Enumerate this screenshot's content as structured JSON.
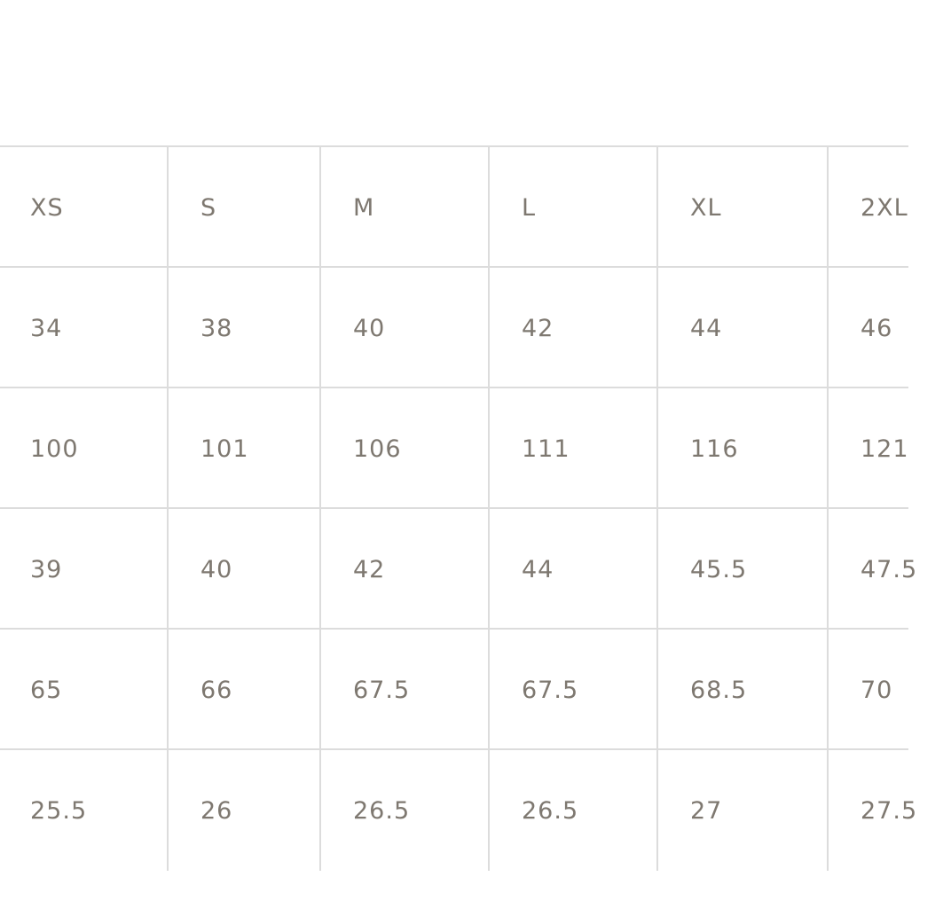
{
  "size_table": {
    "rows": [
      [
        "XS",
        "S",
        "M",
        "L",
        "XL",
        "2XL"
      ],
      [
        "34",
        "38",
        "40",
        "42",
        "44",
        "46"
      ],
      [
        "100",
        "101",
        "106",
        "111",
        "116",
        "121"
      ],
      [
        "39",
        "40",
        "42",
        "44",
        "45.5",
        "47.5"
      ],
      [
        "65",
        "66",
        "67.5",
        "67.5",
        "68.5",
        "70"
      ],
      [
        "25.5",
        "26",
        "26.5",
        "26.5",
        "27",
        "27.5"
      ]
    ]
  },
  "colors": {
    "text": "#7e7870",
    "grid": "#dcdcdc"
  }
}
